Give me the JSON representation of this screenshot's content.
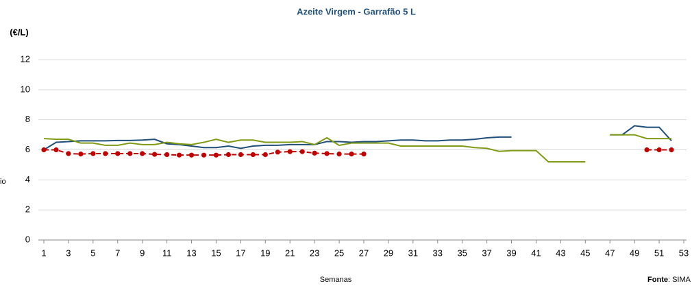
{
  "chart_data": {
    "type": "line",
    "title": "Azeite Virgem - Garrafão 5 L",
    "y_unit": "(€/L)",
    "y_label": "io",
    "x_label": "Semanas",
    "source_label": "Fonte",
    "source": ": SIMA",
    "x": [
      1,
      2,
      3,
      4,
      5,
      6,
      7,
      8,
      9,
      10,
      11,
      12,
      13,
      14,
      15,
      16,
      17,
      18,
      19,
      20,
      21,
      22,
      23,
      24,
      25,
      26,
      27,
      28,
      29,
      30,
      31,
      32,
      33,
      34,
      35,
      36,
      37,
      38,
      39,
      40,
      41,
      42,
      43,
      44,
      45,
      46,
      47,
      48,
      49,
      50,
      51,
      52,
      53
    ],
    "xlim": [
      1,
      53
    ],
    "xticks": [
      1,
      3,
      5,
      7,
      9,
      11,
      13,
      15,
      17,
      19,
      21,
      23,
      25,
      27,
      29,
      31,
      33,
      35,
      37,
      39,
      41,
      43,
      45,
      47,
      49,
      51,
      53
    ],
    "ylim": [
      0,
      12
    ],
    "yticks": [
      0,
      2,
      4,
      6,
      8,
      10,
      12
    ],
    "grid": true,
    "series": [
      {
        "color": "#1f4e79",
        "values": [
          6.0,
          6.5,
          6.55,
          6.6,
          6.6,
          6.6,
          6.62,
          6.62,
          6.65,
          6.7,
          6.4,
          6.35,
          6.25,
          6.15,
          6.15,
          6.25,
          6.1,
          6.25,
          6.3,
          6.3,
          6.35,
          6.35,
          6.35,
          6.55,
          6.55,
          6.5,
          6.55,
          6.55,
          6.6,
          6.65,
          6.65,
          6.6,
          6.6,
          6.65,
          6.65,
          6.7,
          6.8,
          6.85,
          6.85,
          null,
          null,
          null,
          null,
          null,
          null,
          null,
          7.0,
          7.0,
          7.6,
          7.5,
          7.5,
          6.6,
          null
        ]
      },
      {
        "color": "#7f9a14",
        "values": [
          6.75,
          6.7,
          6.7,
          6.45,
          6.45,
          6.3,
          6.3,
          6.45,
          6.35,
          6.35,
          6.5,
          6.4,
          6.35,
          6.5,
          6.7,
          6.5,
          6.65,
          6.65,
          6.5,
          6.5,
          6.5,
          6.55,
          6.35,
          6.8,
          6.3,
          6.45,
          6.45,
          6.45,
          6.45,
          6.25,
          6.25,
          6.25,
          6.25,
          6.25,
          6.25,
          6.15,
          6.1,
          5.9,
          5.95,
          5.95,
          5.95,
          5.2,
          5.2,
          5.2,
          5.2,
          null,
          7.0,
          7.0,
          7.0,
          6.75,
          6.75,
          6.75,
          null
        ]
      },
      {
        "color": "#c00000",
        "dashed": true,
        "markers": true,
        "values": [
          6.0,
          6.0,
          5.75,
          5.72,
          5.75,
          5.75,
          5.75,
          5.75,
          5.75,
          5.7,
          5.68,
          5.65,
          5.65,
          5.65,
          5.65,
          5.68,
          5.68,
          5.68,
          5.68,
          5.85,
          5.88,
          5.88,
          5.78,
          5.75,
          5.72,
          5.72,
          5.72,
          null,
          null,
          null,
          null,
          null,
          null,
          null,
          null,
          null,
          null,
          null,
          null,
          null,
          null,
          null,
          null,
          null,
          null,
          null,
          null,
          null,
          null,
          6.0,
          6.0,
          6.0,
          null
        ]
      }
    ]
  }
}
